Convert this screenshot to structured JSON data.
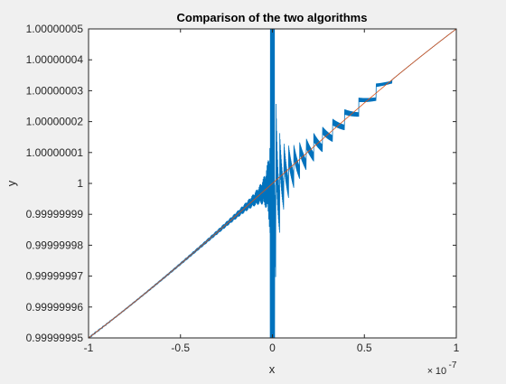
{
  "chart_data": {
    "type": "line",
    "title": "Comparison of the two algorithms",
    "xlabel": "x",
    "ylabel": "y",
    "x_exponent_base": "10",
    "x_exponent_power": "-7",
    "xlim": [
      -1,
      1
    ],
    "ylim": [
      0.99999995,
      1.00000005
    ],
    "x_ticks": [
      -1,
      -0.5,
      0,
      0.5,
      1
    ],
    "x_tick_labels": [
      "-1",
      "-0.5",
      "0",
      "0.5",
      "1"
    ],
    "y_ticks": [
      0.99999995,
      0.99999996,
      0.99999997,
      0.99999998,
      0.99999999,
      1.0,
      1.00000001,
      1.00000002,
      1.00000003,
      1.00000004,
      1.00000005
    ],
    "y_tick_labels": [
      "0.99999995",
      "0.99999996",
      "0.99999997",
      "0.99999998",
      "0.99999999",
      "1",
      "1.00000001",
      "1.00000002",
      "1.00000003",
      "1.00000004",
      "1.00000005"
    ],
    "grid": false,
    "series": [
      {
        "color": "#0072bd",
        "style": "noisy",
        "description_points": [
          {
            "x": -1.0,
            "y": 0.99999995
          },
          {
            "x": -0.5,
            "y": 0.9999999767
          },
          {
            "x": -0.2,
            "y": 0.9999999915
          },
          {
            "x": 0.0,
            "y": 1.0
          },
          {
            "x": 0.25,
            "y": 1.00000001
          },
          {
            "x": 0.5,
            "y": 1.00000002
          },
          {
            "x": 0.75,
            "y": 1.00000004
          },
          {
            "x": 1.0,
            "y": 1.00000005
          }
        ]
      },
      {
        "color": "#d95319",
        "style": "smooth",
        "description_points": [
          {
            "x": -1.0,
            "y": 0.99999995
          },
          {
            "x": -0.5,
            "y": 0.9999999767
          },
          {
            "x": 0.0,
            "y": 1.0
          },
          {
            "x": 0.5,
            "y": 1.0000000233
          },
          {
            "x": 1.0,
            "y": 1.00000005
          }
        ]
      }
    ]
  }
}
